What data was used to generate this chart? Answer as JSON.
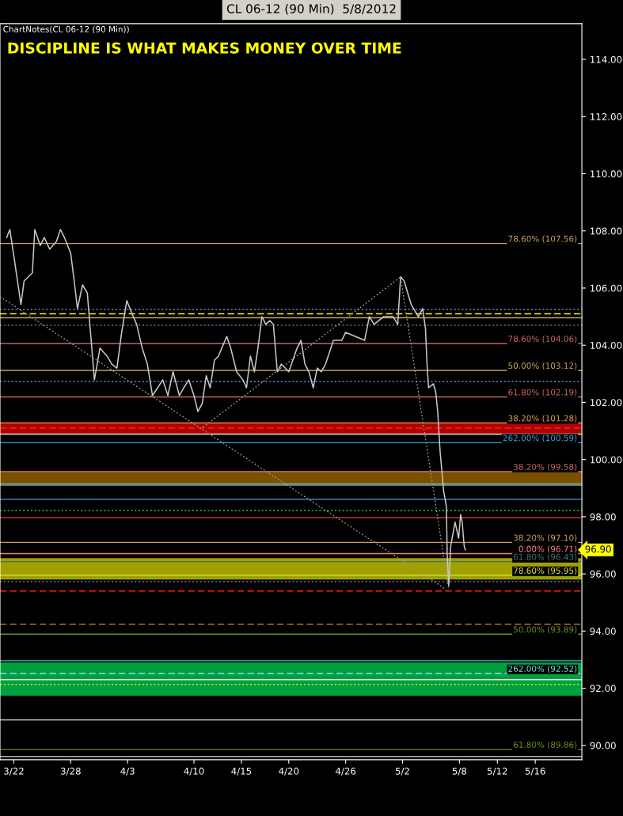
{
  "chart_data": {
    "type": "line",
    "title": "CL 06-12 (90 Min)  5/8/2012",
    "subtitle": "ChartNotes(CL 06-12 (90 Min))",
    "annotations": [
      "DISCIPLINE IS WHAT MAKES MONEY OVER TIME",
      "96.90"
    ],
    "series": [
      {
        "color": "#c8c8c8",
        "x": [
          "2012-03-21T06:00",
          "2012-03-21T14:00",
          "2012-03-22T02:00",
          "2012-03-22T18:00",
          "2012-03-23T02:00",
          "2012-03-23T23:00",
          "2012-03-24T05:00",
          "2012-03-24T19:00",
          "2012-03-25T05:00",
          "2012-03-25T19:00",
          "2012-03-26T12:00",
          "2012-03-26T22:00",
          "2012-03-27T08:00",
          "2012-03-28T00:00",
          "2012-03-28T10:00",
          "2012-03-28T17:00",
          "2012-03-29T06:00",
          "2012-03-29T18:00",
          "2012-03-30T07:00",
          "2012-03-30T12:00",
          "2012-03-31T02:00",
          "2012-03-31T20:00",
          "2012-04-01T08:00",
          "2012-04-01T21:00",
          "2012-04-02T09:00",
          "2012-04-02T22:00",
          "2012-04-03T10:00",
          "2012-04-03T23:00",
          "2012-04-04T13:00",
          "2012-04-05T02:00",
          "2012-04-05T15:00",
          "2012-04-06T04:00",
          "2012-04-06T17:00",
          "2012-04-07T06:00",
          "2012-04-07T19:00",
          "2012-04-08T11:00",
          "2012-04-08T22:00",
          "2012-04-09T11:00",
          "2012-04-10T00:00",
          "2012-04-10T10:00",
          "2012-04-10T21:00",
          "2012-04-11T07:00",
          "2012-04-11T17:00",
          "2012-04-12T04:00",
          "2012-04-12T14:00",
          "2012-04-13T11:00",
          "2012-04-13T21:00",
          "2012-04-14T12:00",
          "2012-04-15T04:00",
          "2012-04-15T13:00",
          "2012-04-15T23:00",
          "2012-04-16T09:00",
          "2012-04-16T18:00",
          "2012-04-17T04:00",
          "2012-04-17T14:00",
          "2012-04-18T00:00",
          "2012-04-18T09:00",
          "2012-04-18T19:00",
          "2012-04-19T05:00",
          "2012-04-20T00:00",
          "2012-04-20T21:00",
          "2012-04-21T07:00",
          "2012-04-21T17:00",
          "2012-04-22T03:00",
          "2012-04-22T14:00",
          "2012-04-23T00:00",
          "2012-04-23T10:00",
          "2012-04-23T21:00",
          "2012-04-24T17:00",
          "2012-04-25T14:00",
          "2012-04-26T00:00",
          "2012-04-27T00:00",
          "2012-04-28T00:00",
          "2012-04-28T12:00",
          "2012-04-29T00:00",
          "2012-04-30T00:00",
          "2012-05-01T00:00",
          "2012-05-01T12:00",
          "2012-05-01T19:00",
          "2012-05-02T04:00",
          "2012-05-02T22:00",
          "2012-05-03T16:00",
          "2012-05-04T03:00",
          "2012-05-04T10:00",
          "2012-05-04T14:00",
          "2012-05-04T18:00",
          "2012-05-05T06:00",
          "2012-05-05T12:00",
          "2012-05-05T17:00",
          "2012-05-05T23:00",
          "2012-05-06T08:00",
          "2012-05-06T15:00",
          "2012-05-06T17:00",
          "2012-05-06T21:00",
          "2012-05-07T02:00",
          "2012-05-07T13:00",
          "2012-05-07T22:00",
          "2012-05-08T03:00",
          "2012-05-08T07:00",
          "2012-05-08T12:00",
          "2012-05-08T15:00"
        ],
        "values": [
          107.77,
          108.05,
          106.94,
          105.42,
          106.25,
          106.53,
          108.05,
          107.49,
          107.77,
          107.36,
          107.63,
          108.05,
          107.77,
          107.22,
          106.11,
          105.28,
          106.11,
          105.83,
          103.62,
          102.79,
          103.9,
          103.62,
          103.34,
          103.2,
          104.45,
          105.56,
          105.14,
          104.73,
          103.9,
          103.34,
          102.24,
          102.51,
          102.79,
          102.24,
          103.07,
          102.24,
          102.51,
          102.79,
          102.24,
          101.68,
          101.96,
          102.93,
          102.51,
          103.48,
          103.62,
          104.31,
          103.9,
          103.07,
          102.79,
          102.51,
          103.62,
          103.07,
          103.9,
          105.0,
          104.73,
          104.86,
          104.73,
          103.07,
          103.34,
          103.07,
          103.9,
          104.17,
          103.34,
          103.07,
          102.51,
          103.2,
          103.07,
          103.34,
          104.17,
          104.17,
          104.45,
          104.31,
          104.17,
          105.0,
          104.73,
          105.0,
          105.0,
          104.73,
          106.39,
          106.25,
          105.42,
          105.0,
          105.28,
          104.59,
          103.34,
          102.51,
          102.65,
          102.37,
          101.68,
          100.3,
          98.91,
          98.36,
          96.7,
          95.59,
          96.98,
          97.81,
          97.25,
          98.08,
          97.81,
          96.98,
          96.84
        ]
      },
      {
        "color": "#a0a0a0",
        "line_style": "dotted",
        "x": [
          "2012-04-10T23:00",
          "2012-05-01T19:00",
          "2012-05-06T21:00"
        ],
        "values": [
          101.13,
          106.39,
          95.45
        ]
      },
      {
        "color": "#a0a0a0",
        "line_style": "dotted",
        "x": [
          "2012-03-20T13:00",
          "2012-05-06T15:00"
        ],
        "values": [
          105.7,
          95.45
        ]
      }
    ],
    "xlim": [
      "2012-03-20T13:00",
      "2012-05-20T22:00"
    ],
    "xticks": [
      {
        "value": "2012-03-22",
        "label": "3/22"
      },
      {
        "value": "2012-03-28",
        "label": "3/28"
      },
      {
        "value": "2012-04-03",
        "label": "4/3"
      },
      {
        "value": "2012-04-10",
        "label": "4/10"
      },
      {
        "value": "2012-04-15",
        "label": "4/15"
      },
      {
        "value": "2012-04-20",
        "label": "4/20"
      },
      {
        "value": "2012-04-26",
        "label": "4/26"
      },
      {
        "value": "2012-05-02",
        "label": "5/2"
      },
      {
        "value": "2012-05-08",
        "label": "5/8"
      },
      {
        "value": "2012-05-12",
        "label": "5/12"
      },
      {
        "value": "2012-05-16",
        "label": "5/16"
      }
    ],
    "ylim": [
      89.5,
      115.25
    ],
    "yticks": [
      {
        "value": 90,
        "label": "90.00"
      },
      {
        "value": 92,
        "label": "92.00"
      },
      {
        "value": 94,
        "label": "94.00"
      },
      {
        "value": 96,
        "label": "96.00"
      },
      {
        "value": 98,
        "label": "98.00"
      },
      {
        "value": 100,
        "label": "100.00"
      },
      {
        "value": 102,
        "label": "102.00"
      },
      {
        "value": 104,
        "label": "104.00"
      },
      {
        "value": 106,
        "label": "106.00"
      },
      {
        "value": 108,
        "label": "108.00"
      },
      {
        "value": 110,
        "label": "110.00"
      },
      {
        "value": 112,
        "label": "112.00"
      },
      {
        "value": 114,
        "label": "114.00"
      }
    ],
    "bands": [
      {
        "axis": "y",
        "from": 100.9,
        "to": 101.3,
        "color": "#b00000"
      },
      {
        "axis": "y",
        "from": 99.1,
        "to": 99.6,
        "color": "#7a5000"
      },
      {
        "axis": "y",
        "from": 95.8,
        "to": 96.55,
        "color": "#a0a000"
      },
      {
        "axis": "y",
        "from": 91.74,
        "to": 92.9,
        "color": "#00a040"
      }
    ],
    "ref_lines": [
      {
        "axis": "y",
        "value": 107.56,
        "color": "#c8a060",
        "label": "78.60% (107.56)"
      },
      {
        "axis": "y",
        "value": 105.25,
        "color": "#6a8acb",
        "line_style": "dotted"
      },
      {
        "axis": "y",
        "value": 105.1,
        "color": "#ffff00",
        "line_style": "dashed"
      },
      {
        "axis": "y",
        "value": 104.96,
        "color": "#c8a060"
      },
      {
        "axis": "y",
        "value": 104.7,
        "color": "#6a8acb",
        "line_style": "dotted"
      },
      {
        "axis": "y",
        "value": 104.06,
        "color": "#c86464",
        "label": "78.60% (104.06)"
      },
      {
        "axis": "y",
        "value": 103.12,
        "color": "#c8a060",
        "label": "50.00% (103.12)"
      },
      {
        "axis": "y",
        "value": 102.73,
        "color": "#6a8acb",
        "line_style": "dotted"
      },
      {
        "axis": "y",
        "value": 102.19,
        "color": "#c86464",
        "label": "61.80% (102.19)"
      },
      {
        "axis": "y",
        "value": 101.28,
        "color": "#e0a040",
        "label": "38.20% (101.28)"
      },
      {
        "axis": "y",
        "value": 101.1,
        "color": "#ff3030",
        "line_style": "dashed"
      },
      {
        "axis": "y",
        "value": 100.89,
        "color": "#e0e0e0"
      },
      {
        "axis": "y",
        "value": 100.59,
        "color": "#40a0e0",
        "label": "262.00% (100.59)"
      },
      {
        "axis": "y",
        "value": 99.58,
        "color": "#c86464",
        "label": "38.20% (99.58)"
      },
      {
        "axis": "y",
        "value": 99.15,
        "color": "#80c080"
      },
      {
        "axis": "y",
        "value": 99.1,
        "color": "#40a0e0"
      },
      {
        "axis": "y",
        "value": 98.61,
        "color": "#40a0e0"
      },
      {
        "axis": "y",
        "value": 98.22,
        "color": "#30c060",
        "line_style": "dotted"
      },
      {
        "axis": "y",
        "value": 97.97,
        "color": "#c83030"
      },
      {
        "axis": "y",
        "value": 97.1,
        "color": "#c8a060",
        "label": "38.20% (97.10)"
      },
      {
        "axis": "y",
        "value": 96.71,
        "color": "#ff8080",
        "label": "0.00% (96.71)"
      },
      {
        "axis": "y",
        "value": 96.43,
        "color": "#407070",
        "label": "61.80% (96.43)"
      },
      {
        "axis": "y",
        "value": 95.95,
        "color": "#e0e040",
        "label": "78.60% (95.95)"
      },
      {
        "axis": "y",
        "value": 95.73,
        "color": "#6a8acb",
        "line_style": "dotted"
      },
      {
        "axis": "y",
        "value": 95.4,
        "color": "#ff2020",
        "line_style": "dashed"
      },
      {
        "axis": "y",
        "value": 94.24,
        "color": "#e08040",
        "line_style": "dashed"
      },
      {
        "axis": "y",
        "value": 93.89,
        "color": "#6b8e23",
        "label": "50.00% (93.89)"
      },
      {
        "axis": "y",
        "value": 92.96,
        "color": "#40c0c0"
      },
      {
        "axis": "y",
        "value": 92.52,
        "color": "#80e0e0",
        "line_style": "dashed",
        "label": "262.00% (92.52)"
      },
      {
        "axis": "y",
        "value": 92.3,
        "color": "#e0e0e0"
      },
      {
        "axis": "y",
        "value": 92.13,
        "color": "#ffff00",
        "line_style": "dotted"
      },
      {
        "axis": "y",
        "value": 90.89,
        "color": "#e0e0e0"
      },
      {
        "axis": "y",
        "value": 89.86,
        "color": "#6b8e23",
        "label": "61.80% (89.86)"
      },
      {
        "axis": "y",
        "value": 89.61,
        "color": "#e0e0e0"
      }
    ]
  }
}
